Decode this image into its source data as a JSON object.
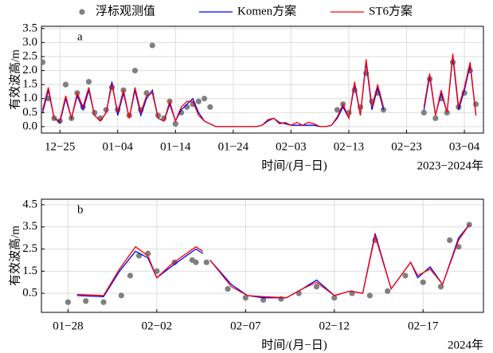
{
  "chart_data": [
    {
      "type": "line",
      "panel": "a",
      "xlabel": "时间/(月−日)",
      "ylabel": "有效波高/m",
      "note": "2023−2024年",
      "xlim": [
        -3.2,
        73.3
      ],
      "xticks": [
        {
          "value": 0,
          "label": "12−25"
        },
        {
          "value": 10,
          "label": "01−04"
        },
        {
          "value": 20,
          "label": "01−14"
        },
        {
          "value": 30,
          "label": "01−24"
        },
        {
          "value": 40,
          "label": "02−03"
        },
        {
          "value": 50,
          "label": "02−13"
        },
        {
          "value": 60,
          "label": "02−23"
        },
        {
          "value": 70,
          "label": "03−04"
        }
      ],
      "ylim": [
        -0.23,
        3.58
      ],
      "yticks": [
        {
          "value": 0,
          "label": "0.0"
        },
        0.5,
        {
          "value": 1,
          "label": "1.0"
        },
        1.5,
        {
          "value": 2,
          "label": "2.0"
        },
        2.5,
        {
          "value": 3,
          "label": "3.0"
        },
        3.5
      ],
      "grid": true,
      "x": [
        -3,
        -2,
        -1,
        0,
        1,
        2,
        3,
        4,
        5,
        6,
        7,
        8,
        9,
        10,
        11,
        12,
        13,
        14,
        15,
        16,
        17,
        18,
        19,
        20,
        21,
        22,
        23,
        24,
        25,
        26,
        27,
        28,
        29,
        30,
        31,
        32,
        33,
        34,
        35,
        36,
        37,
        38,
        39,
        40,
        41,
        42,
        43,
        44,
        45,
        46,
        47,
        48,
        49,
        50,
        51,
        52,
        53,
        54,
        55,
        56,
        57,
        58,
        59,
        60,
        61,
        62,
        63,
        64,
        65,
        66,
        67,
        68,
        69,
        70,
        71,
        72
      ],
      "series": [
        {
          "name": "浮标观测值",
          "kind": "scatter",
          "color": "#808080",
          "values": [
            2.3,
            1.0,
            0.3,
            0.2,
            1.5,
            0.3,
            1.2,
            0.7,
            1.6,
            0.5,
            0.3,
            0.6,
            1.4,
            0.6,
            1.3,
            0.4,
            2.0,
            0.6,
            1.2,
            2.9,
            0.4,
            0.3,
            0.9,
            0.1,
            0.5,
            0.7,
            0.8,
            0.9,
            1.0,
            0.7,
            null,
            null,
            null,
            null,
            null,
            null,
            null,
            null,
            null,
            null,
            null,
            null,
            null,
            null,
            null,
            null,
            null,
            null,
            null,
            null,
            null,
            0.6,
            0.8,
            0.5,
            1.3,
            0.7,
            1.9,
            0.9,
            1.2,
            0.6,
            null,
            null,
            null,
            null,
            null,
            null,
            0.5,
            1.7,
            0.3,
            1.0,
            0.5,
            2.3,
            0.7,
            1.2,
            2.0,
            0.8
          ]
        },
        {
          "name": "Komen方案",
          "kind": "line",
          "color": "#0000ff",
          "values": [
            0.5,
            1.3,
            0.3,
            0.15,
            1.0,
            0.3,
            1.1,
            0.6,
            1.3,
            0.4,
            0.2,
            0.5,
            1.6,
            0.4,
            1.2,
            0.3,
            1.3,
            0.4,
            1.0,
            1.3,
            0.3,
            0.2,
            0.8,
            0.2,
            0.6,
            0.8,
            1.0,
            0.5,
            0.2,
            0.1,
            0.0,
            0.0,
            0.0,
            0.0,
            0.0,
            0.0,
            0.0,
            0.0,
            0.05,
            0.2,
            0.3,
            0.15,
            0.1,
            0.05,
            0.05,
            0.05,
            0.05,
            0.05,
            0.0,
            0.0,
            0.05,
            0.3,
            0.7,
            0.3,
            1.5,
            0.4,
            2.3,
            0.6,
            1.4,
            0.6,
            null,
            null,
            null,
            null,
            null,
            null,
            0.6,
            1.8,
            0.4,
            1.2,
            0.5,
            2.5,
            0.6,
            1.3,
            2.2,
            0.4
          ]
        },
        {
          "name": "ST6方案",
          "kind": "line",
          "color": "#ff0000",
          "values": [
            0.6,
            1.4,
            0.3,
            0.2,
            1.1,
            0.3,
            1.2,
            0.7,
            1.4,
            0.4,
            0.2,
            0.5,
            1.5,
            0.5,
            1.3,
            0.3,
            1.4,
            0.5,
            1.1,
            1.2,
            0.3,
            0.2,
            0.9,
            0.2,
            0.7,
            0.9,
            0.9,
            0.4,
            0.2,
            0.1,
            0.0,
            0.0,
            0.0,
            0.0,
            0.0,
            0.0,
            0.0,
            0.0,
            0.05,
            0.25,
            0.3,
            0.1,
            0.15,
            0.05,
            0.15,
            0.05,
            0.15,
            0.1,
            0.0,
            0.0,
            0.05,
            0.35,
            0.8,
            0.3,
            1.6,
            0.4,
            2.4,
            0.7,
            1.5,
            0.7,
            null,
            null,
            null,
            null,
            null,
            null,
            0.7,
            1.9,
            0.4,
            1.3,
            0.5,
            2.6,
            0.7,
            1.4,
            2.3,
            0.4
          ]
        }
      ]
    },
    {
      "type": "line",
      "panel": "b",
      "xlabel": "时间/(月−日)",
      "ylabel": "有效波高/m",
      "note": "2024年",
      "xlim": [
        -1.5,
        23.4
      ],
      "xticks": [
        {
          "value": 0,
          "label": "01−28"
        },
        {
          "value": 5,
          "label": "02−02"
        },
        {
          "value": 10,
          "label": "02−07"
        },
        {
          "value": 15,
          "label": "02−12"
        },
        {
          "value": 20,
          "label": "02−17"
        }
      ],
      "ylim": [
        -0.36,
        4.75
      ],
      "yticks": [
        0.5,
        1.5,
        2.5,
        3.5,
        4.5
      ],
      "grid": true,
      "x": [
        0.5,
        2,
        2.9,
        3.8,
        4.5,
        5,
        5.8,
        7.2,
        7.6,
        7.8,
        8.0,
        9.2,
        10.1,
        11,
        12.3,
        13.2,
        14,
        15,
        15.9,
        16.6,
        17.3,
        18.2,
        19.3,
        19.7,
        20.4,
        21.1,
        22,
        22.6
      ],
      "series": [
        {
          "kind": "scatter",
          "color": "#808080",
          "x": [
            0,
            1,
            2,
            3,
            3.5,
            4,
            4.5,
            5,
            6,
            7,
            7.2,
            7.5,
            7.8,
            9,
            10,
            11,
            12,
            13,
            14,
            15,
            16,
            17,
            17.3,
            18,
            19,
            20,
            21,
            21.5,
            22,
            22.6
          ],
          "values": [
            0.1,
            0.15,
            0.1,
            0.4,
            1.3,
            2.2,
            2.3,
            1.5,
            1.9,
            2.0,
            1.9,
            null,
            1.9,
            0.7,
            0.3,
            0.2,
            0.25,
            0.5,
            0.8,
            0.3,
            0.5,
            0.4,
            2.9,
            0.6,
            1.3,
            1.0,
            0.8,
            2.9,
            2.6,
            3.6
          ]
        },
        {
          "kind": "line",
          "color": "#0000ff",
          "values": [
            0.4,
            0.35,
            1.5,
            2.4,
            2.1,
            1.2,
            1.7,
            2.5,
            2.3,
            null,
            2.0,
            0.9,
            0.4,
            0.3,
            0.3,
            0.7,
            1.1,
            0.4,
            0.6,
            0.5,
            3.2,
            0.7,
            1.9,
            1.2,
            1.7,
            0.9,
            3.0,
            3.6
          ]
        },
        {
          "kind": "line",
          "color": "#ff0000",
          "values": [
            0.45,
            0.4,
            1.6,
            2.6,
            2.2,
            1.2,
            1.8,
            2.6,
            2.4,
            null,
            2.0,
            0.8,
            0.4,
            0.35,
            0.3,
            0.7,
            1.0,
            0.4,
            0.6,
            0.5,
            3.1,
            0.7,
            1.9,
            1.3,
            1.6,
            0.9,
            2.9,
            3.6
          ]
        }
      ]
    }
  ]
}
